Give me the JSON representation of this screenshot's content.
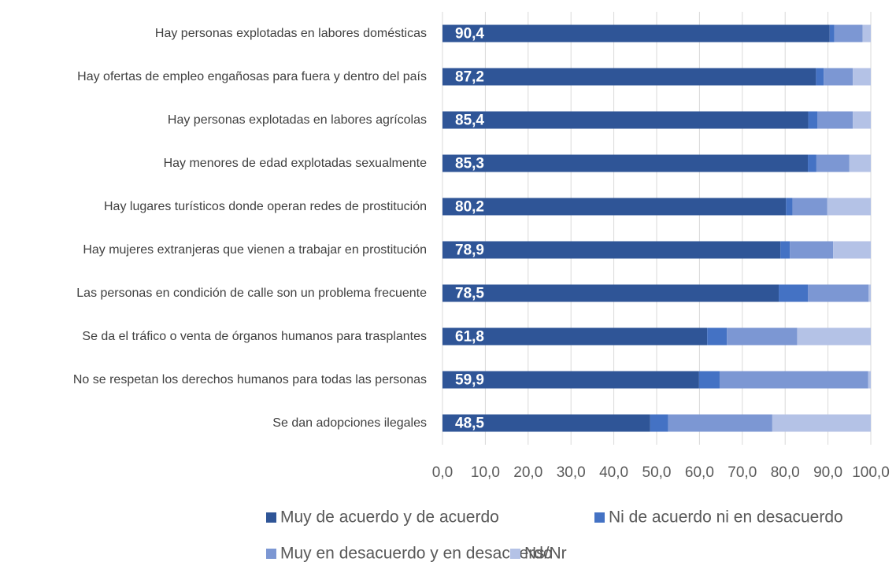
{
  "chart_data": {
    "type": "stacked_barh",
    "categories": [
      "Hay personas explotadas en labores domésticas",
      "Hay ofertas de empleo engañosas para fuera y dentro del país",
      "Hay personas explotadas en labores agrícolas",
      "Hay menores de edad explotadas sexualmente",
      "Hay lugares turísticos donde operan redes de prostitución",
      "Hay mujeres extranjeras que vienen a trabajar en prostitución",
      "Las personas en condición de calle son un problema frecuente",
      "Se da el tráfico o venta de órganos humanos para trasplantes",
      "No se respetan los derechos humanos para todas las personas",
      "Se dan adopciones ilegales"
    ],
    "series": [
      {
        "name": "Muy de acuerdo y de acuerdo",
        "color": "#2f5597",
        "values": [
          90.4,
          87.2,
          85.4,
          85.3,
          80.2,
          78.9,
          78.5,
          61.8,
          59.9,
          48.5
        ],
        "value_labels": [
          "90,4",
          "87,2",
          "85,4",
          "85,3",
          "80,2",
          "78,9",
          "78,5",
          "61,8",
          "59,9",
          "48,5"
        ]
      },
      {
        "name": "Ni de acuerdo ni en desacuerdo",
        "color": "#4472c4",
        "values": [
          1.1,
          1.8,
          2.1,
          2.0,
          1.5,
          2.2,
          6.8,
          4.6,
          4.8,
          4.2
        ]
      },
      {
        "name": "Muy en desacuerdo y en desacuerdo",
        "color": "#7c97d3",
        "values": [
          6.6,
          6.8,
          8.3,
          7.7,
          8.1,
          10.1,
          14.2,
          16.4,
          34.7,
          24.3
        ]
      },
      {
        "name": "Ns/Nr",
        "color": "#b4c2e6",
        "values": [
          1.9,
          4.2,
          4.2,
          5.0,
          10.2,
          8.8,
          0.5,
          17.2,
          0.6,
          23.0
        ]
      }
    ],
    "xlim": [
      0,
      100
    ],
    "xticks": [
      {
        "value": 0,
        "label": "0,0"
      },
      {
        "value": 10,
        "label": "10,0"
      },
      {
        "value": 20,
        "label": "20,0"
      },
      {
        "value": 30,
        "label": "30,0"
      },
      {
        "value": 40,
        "label": "40,0"
      },
      {
        "value": 50,
        "label": "50,0"
      },
      {
        "value": 60,
        "label": "60,0"
      },
      {
        "value": 70,
        "label": "70,0"
      },
      {
        "value": 80,
        "label": "80,0"
      },
      {
        "value": 90,
        "label": "90,0"
      },
      {
        "value": 100,
        "label": "100,0"
      }
    ],
    "grid": true,
    "legend": "bottom"
  }
}
